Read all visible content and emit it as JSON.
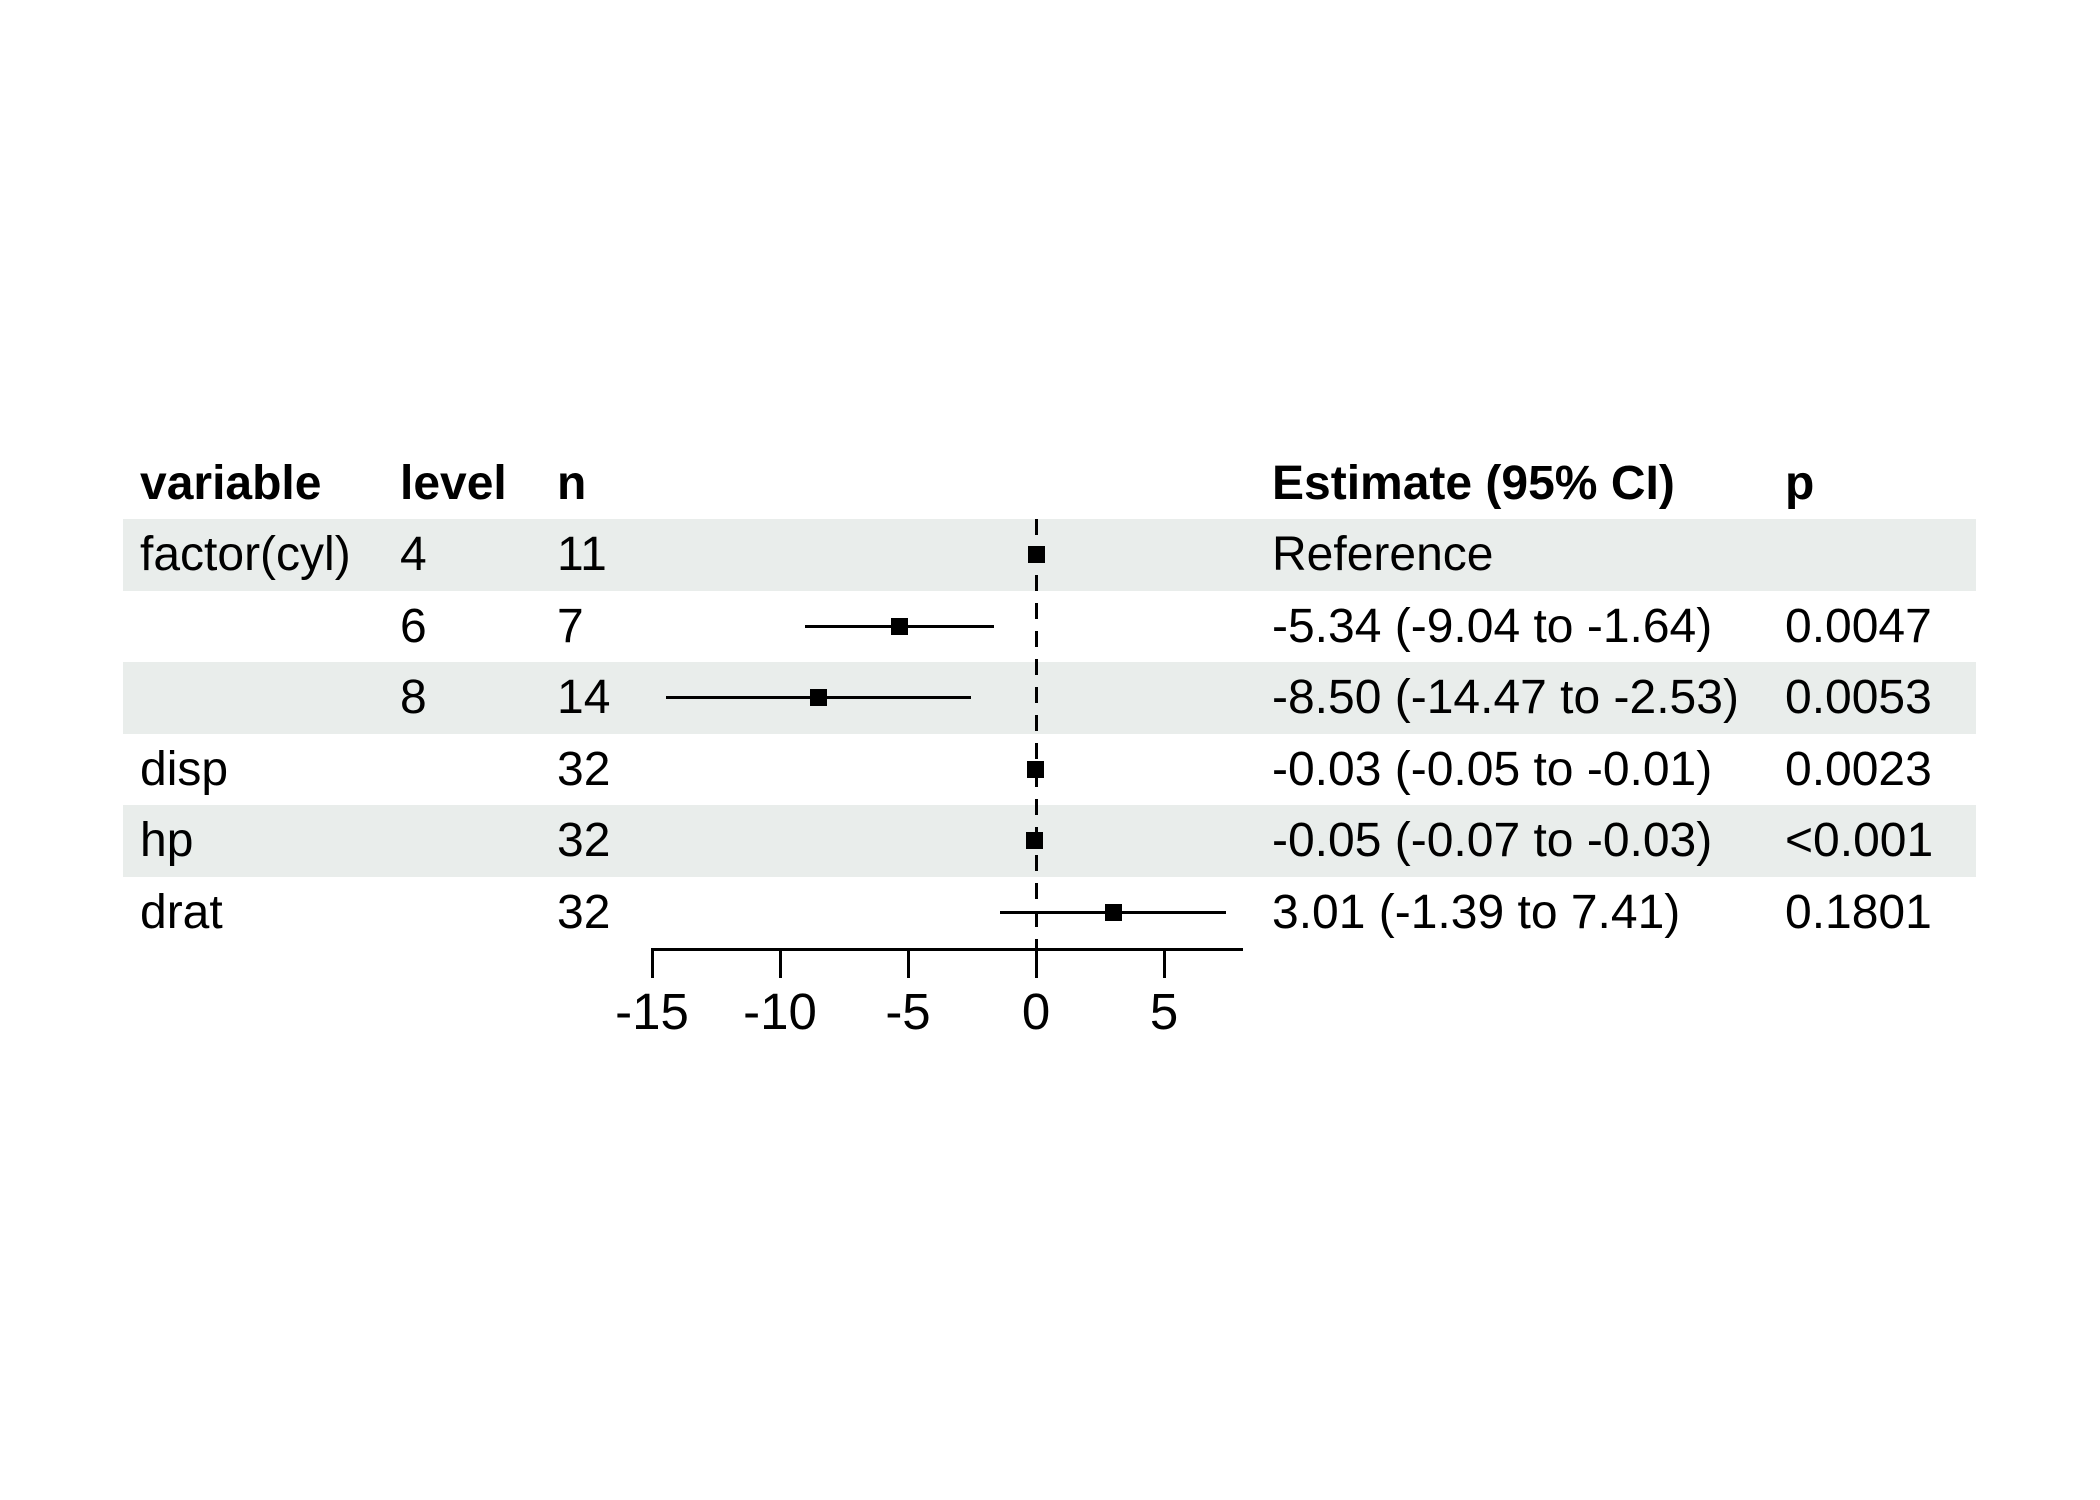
{
  "meta": {
    "background": "#ffffff",
    "stripe_color": "#e9edeb",
    "text_color": "#000000",
    "marker_color": "#000000"
  },
  "table": {
    "headers": {
      "variable": "variable",
      "level": "level",
      "n": "n",
      "estimate": "Estimate (95% CI)",
      "p": "p"
    }
  },
  "chart_data": {
    "type": "forest",
    "title": "",
    "xlabel": "",
    "x_ticks": [
      -15,
      -10,
      -5,
      0,
      5
    ],
    "xlim": [
      -15,
      8.09
    ],
    "zero_line": 0,
    "grid": false,
    "rows": [
      {
        "variable": "factor(cyl)",
        "level": "4",
        "n": "11",
        "estimate": 0,
        "ci_low": null,
        "ci_high": null,
        "estimate_label": "Reference",
        "p": "",
        "shaded": true,
        "reference": true
      },
      {
        "variable": "",
        "level": "6",
        "n": "7",
        "estimate": -5.34,
        "ci_low": -9.04,
        "ci_high": -1.64,
        "estimate_label": "-5.34 (-9.04 to -1.64)",
        "p": "0.0047",
        "shaded": false,
        "reference": false
      },
      {
        "variable": "",
        "level": "8",
        "n": "14",
        "estimate": -8.5,
        "ci_low": -14.47,
        "ci_high": -2.53,
        "estimate_label": "-8.50 (-14.47 to -2.53)",
        "p": "0.0053",
        "shaded": true,
        "reference": false
      },
      {
        "variable": "disp",
        "level": "",
        "n": "32",
        "estimate": -0.03,
        "ci_low": -0.05,
        "ci_high": -0.01,
        "estimate_label": "-0.03 (-0.05 to -0.01)",
        "p": "0.0023",
        "shaded": false,
        "reference": false
      },
      {
        "variable": "hp",
        "level": "",
        "n": "32",
        "estimate": -0.05,
        "ci_low": -0.07,
        "ci_high": -0.03,
        "estimate_label": "-0.05 (-0.07 to -0.03)",
        "p": "<0.001",
        "shaded": true,
        "reference": false
      },
      {
        "variable": "drat",
        "level": "",
        "n": "32",
        "estimate": 3.01,
        "ci_low": -1.39,
        "ci_high": 7.41,
        "estimate_label": "3.01 (-1.39 to 7.41)",
        "p": "0.1801",
        "shaded": false,
        "reference": false
      }
    ]
  }
}
